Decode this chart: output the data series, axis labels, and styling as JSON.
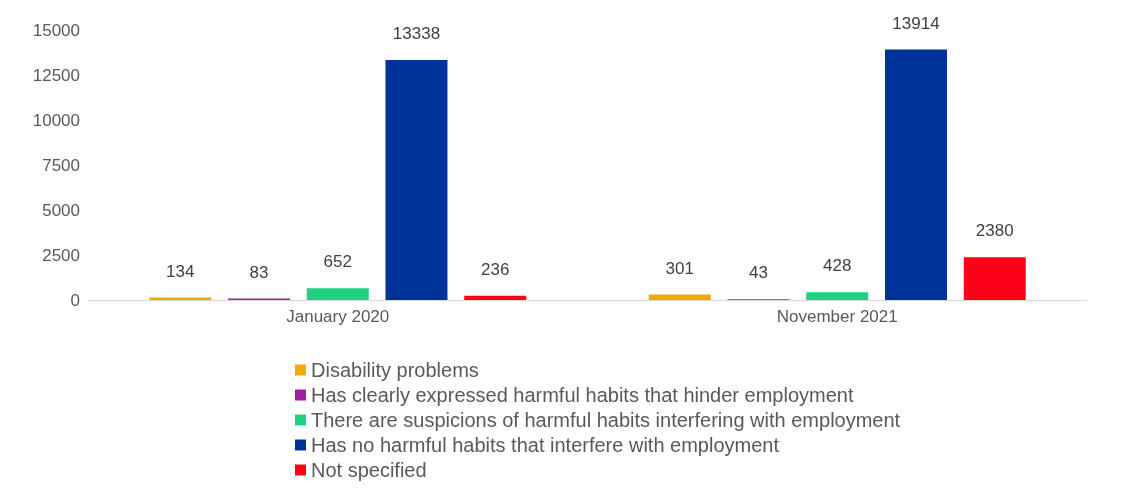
{
  "chart_data": {
    "type": "bar",
    "categories": [
      "January 2020",
      "November 2021"
    ],
    "series": [
      {
        "name": "Disability problems",
        "color": "#f5a800",
        "values": [
          134,
          301
        ]
      },
      {
        "name": "Has clearly expressed harmful habits that hinder employment",
        "color": "#a020a0",
        "values": [
          83,
          43
        ]
      },
      {
        "name": "There are suspicions of harmful habits interfering with employment",
        "color": "#20d080",
        "values": [
          652,
          428
        ]
      },
      {
        "name": "Has no harmful habits that interfere with employment",
        "color": "#003399",
        "values": [
          13338,
          13914
        ]
      },
      {
        "name": "Not specified",
        "color": "#ff0019",
        "values": [
          236,
          2380
        ]
      }
    ],
    "ylim": [
      0,
      15000
    ],
    "yticks": [
      0,
      2500,
      5000,
      7500,
      10000,
      12500,
      15000
    ],
    "data_labels": true,
    "legend": "bottom",
    "grid": false
  }
}
